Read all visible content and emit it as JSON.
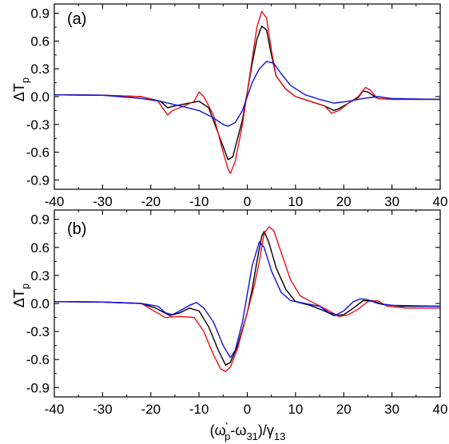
{
  "chart_data": [
    {
      "type": "line",
      "panel_label": "(a)",
      "ylabel": "ΔT",
      "ylabel_sub": "p",
      "xlabel": "",
      "xlim": [
        -40,
        40
      ],
      "ylim": [
        -1.0,
        1.0
      ],
      "xticks": [
        -40,
        -30,
        -20,
        -10,
        0,
        10,
        20,
        30,
        40
      ],
      "yticks": [
        -0.9,
        -0.6,
        -0.3,
        0.0,
        0.3,
        0.6,
        0.9
      ],
      "xtick_labels": [
        "-40",
        "-30",
        "-20",
        "-10",
        "0",
        "10",
        "20",
        "30",
        "40"
      ],
      "ytick_labels": [
        "-0.9",
        "-0.6",
        "-0.3",
        "0.0",
        "0.3",
        "0.6",
        "0.9"
      ],
      "legend": "none",
      "grid": false,
      "series": [
        {
          "color": "#000000",
          "points": [
            [
              -40,
              0.02
            ],
            [
              -30,
              0.015
            ],
            [
              -22,
              0.0
            ],
            [
              -18,
              -0.05
            ],
            [
              -16.5,
              -0.12
            ],
            [
              -15,
              -0.1
            ],
            [
              -12,
              -0.07
            ],
            [
              -10,
              -0.05
            ],
            [
              -8,
              -0.12
            ],
            [
              -6,
              -0.4
            ],
            [
              -4,
              -0.68
            ],
            [
              -3,
              -0.65
            ],
            [
              -1,
              -0.25
            ],
            [
              0,
              0.05
            ],
            [
              1,
              0.35
            ],
            [
              2,
              0.62
            ],
            [
              3,
              0.76
            ],
            [
              4,
              0.72
            ],
            [
              5,
              0.45
            ],
            [
              6,
              0.22
            ],
            [
              8,
              0.08
            ],
            [
              10,
              0.0
            ],
            [
              13,
              -0.05
            ],
            [
              16,
              -0.1
            ],
            [
              18,
              -0.15
            ],
            [
              19,
              -0.13
            ],
            [
              21,
              -0.07
            ],
            [
              23,
              -0.01
            ],
            [
              24,
              0.06
            ],
            [
              25,
              0.05
            ],
            [
              27,
              -0.02
            ],
            [
              30,
              -0.03
            ],
            [
              40,
              -0.03
            ]
          ]
        },
        {
          "color": "#e8101a",
          "points": [
            [
              -40,
              0.02
            ],
            [
              -30,
              0.015
            ],
            [
              -22,
              0.0
            ],
            [
              -18.5,
              -0.05
            ],
            [
              -16.5,
              -0.2
            ],
            [
              -15.5,
              -0.15
            ],
            [
              -13,
              -0.1
            ],
            [
              -11,
              -0.05
            ],
            [
              -10,
              0.05
            ],
            [
              -9,
              0.0
            ],
            [
              -7,
              -0.2
            ],
            [
              -5,
              -0.6
            ],
            [
              -4,
              -0.78
            ],
            [
              -3.5,
              -0.83
            ],
            [
              -2.5,
              -0.7
            ],
            [
              -1,
              -0.3
            ],
            [
              0,
              0.05
            ],
            [
              1,
              0.4
            ],
            [
              2,
              0.75
            ],
            [
              3,
              0.92
            ],
            [
              4,
              0.85
            ],
            [
              5,
              0.5
            ],
            [
              6,
              0.22
            ],
            [
              8,
              0.08
            ],
            [
              10,
              0.0
            ],
            [
              13,
              -0.05
            ],
            [
              16,
              -0.1
            ],
            [
              17.5,
              -0.18
            ],
            [
              19,
              -0.15
            ],
            [
              21,
              -0.07
            ],
            [
              23,
              0.0
            ],
            [
              24.5,
              0.1
            ],
            [
              25.5,
              0.07
            ],
            [
              27,
              -0.02
            ],
            [
              30,
              -0.03
            ],
            [
              40,
              -0.03
            ]
          ]
        },
        {
          "color": "#1010e0",
          "points": [
            [
              -40,
              0.02
            ],
            [
              -30,
              0.015
            ],
            [
              -22,
              -0.02
            ],
            [
              -18,
              -0.05
            ],
            [
              -14,
              -0.1
            ],
            [
              -10,
              -0.15
            ],
            [
              -7,
              -0.23
            ],
            [
              -5,
              -0.3
            ],
            [
              -4,
              -0.32
            ],
            [
              -2.5,
              -0.28
            ],
            [
              -1,
              -0.15
            ],
            [
              0,
              0.0
            ],
            [
              1,
              0.15
            ],
            [
              2.5,
              0.3
            ],
            [
              4,
              0.38
            ],
            [
              5.5,
              0.36
            ],
            [
              7,
              0.25
            ],
            [
              9,
              0.12
            ],
            [
              12,
              0.02
            ],
            [
              15,
              -0.03
            ],
            [
              18,
              -0.07
            ],
            [
              21,
              -0.05
            ],
            [
              24,
              -0.02
            ],
            [
              27,
              0.0
            ],
            [
              30,
              -0.02
            ],
            [
              40,
              -0.03
            ]
          ]
        }
      ]
    },
    {
      "type": "line",
      "panel_label": "(b)",
      "ylabel": "ΔT",
      "ylabel_sub": "p",
      "xlabel": "(ω'p-ω31)/γ13",
      "xlabel_parts": {
        "omega": "(ω",
        "prime": "'",
        "p_sub": "p",
        "minus": "-ω",
        "sub31": "31",
        "over": ")/γ",
        "sub13": "13"
      },
      "xlim": [
        -40,
        40
      ],
      "ylim": [
        -1.0,
        1.0
      ],
      "xticks": [
        -40,
        -30,
        -20,
        -10,
        0,
        10,
        20,
        30,
        40
      ],
      "yticks": [
        -0.9,
        -0.6,
        -0.3,
        0.0,
        0.3,
        0.6,
        0.9
      ],
      "xtick_labels": [
        "-40",
        "-30",
        "-20",
        "-10",
        "0",
        "10",
        "20",
        "30",
        "40"
      ],
      "ytick_labels": [
        "-0.9",
        "-0.6",
        "-0.3",
        "0.0",
        "0.3",
        "0.6",
        "0.9"
      ],
      "legend": "none",
      "grid": false,
      "series": [
        {
          "color": "#000000",
          "points": [
            [
              -40,
              0.02
            ],
            [
              -30,
              0.015
            ],
            [
              -22,
              0.0
            ],
            [
              -19,
              -0.05
            ],
            [
              -16,
              -0.13
            ],
            [
              -14,
              -0.1
            ],
            [
              -12,
              -0.05
            ],
            [
              -10,
              -0.08
            ],
            [
              -8,
              -0.25
            ],
            [
              -6,
              -0.5
            ],
            [
              -4.5,
              -0.66
            ],
            [
              -3.5,
              -0.63
            ],
            [
              -2,
              -0.45
            ],
            [
              0,
              -0.1
            ],
            [
              1,
              0.15
            ],
            [
              2,
              0.45
            ],
            [
              3,
              0.72
            ],
            [
              3.5,
              0.77
            ],
            [
              4.5,
              0.65
            ],
            [
              6,
              0.38
            ],
            [
              8,
              0.15
            ],
            [
              10,
              0.02
            ],
            [
              13,
              -0.02
            ],
            [
              16,
              -0.08
            ],
            [
              18,
              -0.13
            ],
            [
              20,
              -0.12
            ],
            [
              22,
              -0.05
            ],
            [
              24,
              0.03
            ],
            [
              26,
              0.03
            ],
            [
              28,
              -0.01
            ],
            [
              32,
              -0.03
            ],
            [
              40,
              -0.03
            ]
          ]
        },
        {
          "color": "#e8101a",
          "points": [
            [
              -40,
              0.02
            ],
            [
              -30,
              0.015
            ],
            [
              -22,
              0.0
            ],
            [
              -20,
              -0.06
            ],
            [
              -17,
              -0.15
            ],
            [
              -14,
              -0.14
            ],
            [
              -11,
              -0.15
            ],
            [
              -9,
              -0.3
            ],
            [
              -7,
              -0.55
            ],
            [
              -5.5,
              -0.7
            ],
            [
              -4.5,
              -0.73
            ],
            [
              -3.5,
              -0.68
            ],
            [
              -2,
              -0.48
            ],
            [
              0,
              -0.1
            ],
            [
              1.5,
              0.2
            ],
            [
              2.5,
              0.45
            ],
            [
              3.5,
              0.75
            ],
            [
              4.5,
              0.82
            ],
            [
              5.5,
              0.78
            ],
            [
              7,
              0.55
            ],
            [
              9,
              0.25
            ],
            [
              11,
              0.08
            ],
            [
              14,
              0.0
            ],
            [
              17,
              -0.08
            ],
            [
              19,
              -0.14
            ],
            [
              21,
              -0.12
            ],
            [
              23,
              -0.06
            ],
            [
              25,
              0.02
            ],
            [
              27,
              0.03
            ],
            [
              29,
              -0.03
            ],
            [
              33,
              -0.05
            ],
            [
              40,
              -0.05
            ]
          ]
        },
        {
          "color": "#1010e0",
          "points": [
            [
              -40,
              0.02
            ],
            [
              -30,
              0.015
            ],
            [
              -22,
              0.0
            ],
            [
              -18.5,
              -0.03
            ],
            [
              -17,
              -0.1
            ],
            [
              -15.5,
              -0.12
            ],
            [
              -14,
              -0.08
            ],
            [
              -12,
              -0.02
            ],
            [
              -10.5,
              0.01
            ],
            [
              -9,
              -0.05
            ],
            [
              -7,
              -0.2
            ],
            [
              -5,
              -0.45
            ],
            [
              -3.5,
              -0.58
            ],
            [
              -2.5,
              -0.5
            ],
            [
              -1,
              -0.2
            ],
            [
              0,
              0.1
            ],
            [
              1,
              0.4
            ],
            [
              2.5,
              0.66
            ],
            [
              3.5,
              0.6
            ],
            [
              5,
              0.35
            ],
            [
              7,
              0.12
            ],
            [
              9,
              0.03
            ],
            [
              12,
              0.0
            ],
            [
              15,
              -0.03
            ],
            [
              17,
              -0.1
            ],
            [
              18.5,
              -0.12
            ],
            [
              20,
              -0.08
            ],
            [
              22,
              0.02
            ],
            [
              23.5,
              0.05
            ],
            [
              25,
              0.04
            ],
            [
              27,
              0.0
            ],
            [
              30,
              -0.02
            ],
            [
              40,
              -0.03
            ]
          ]
        }
      ]
    }
  ]
}
